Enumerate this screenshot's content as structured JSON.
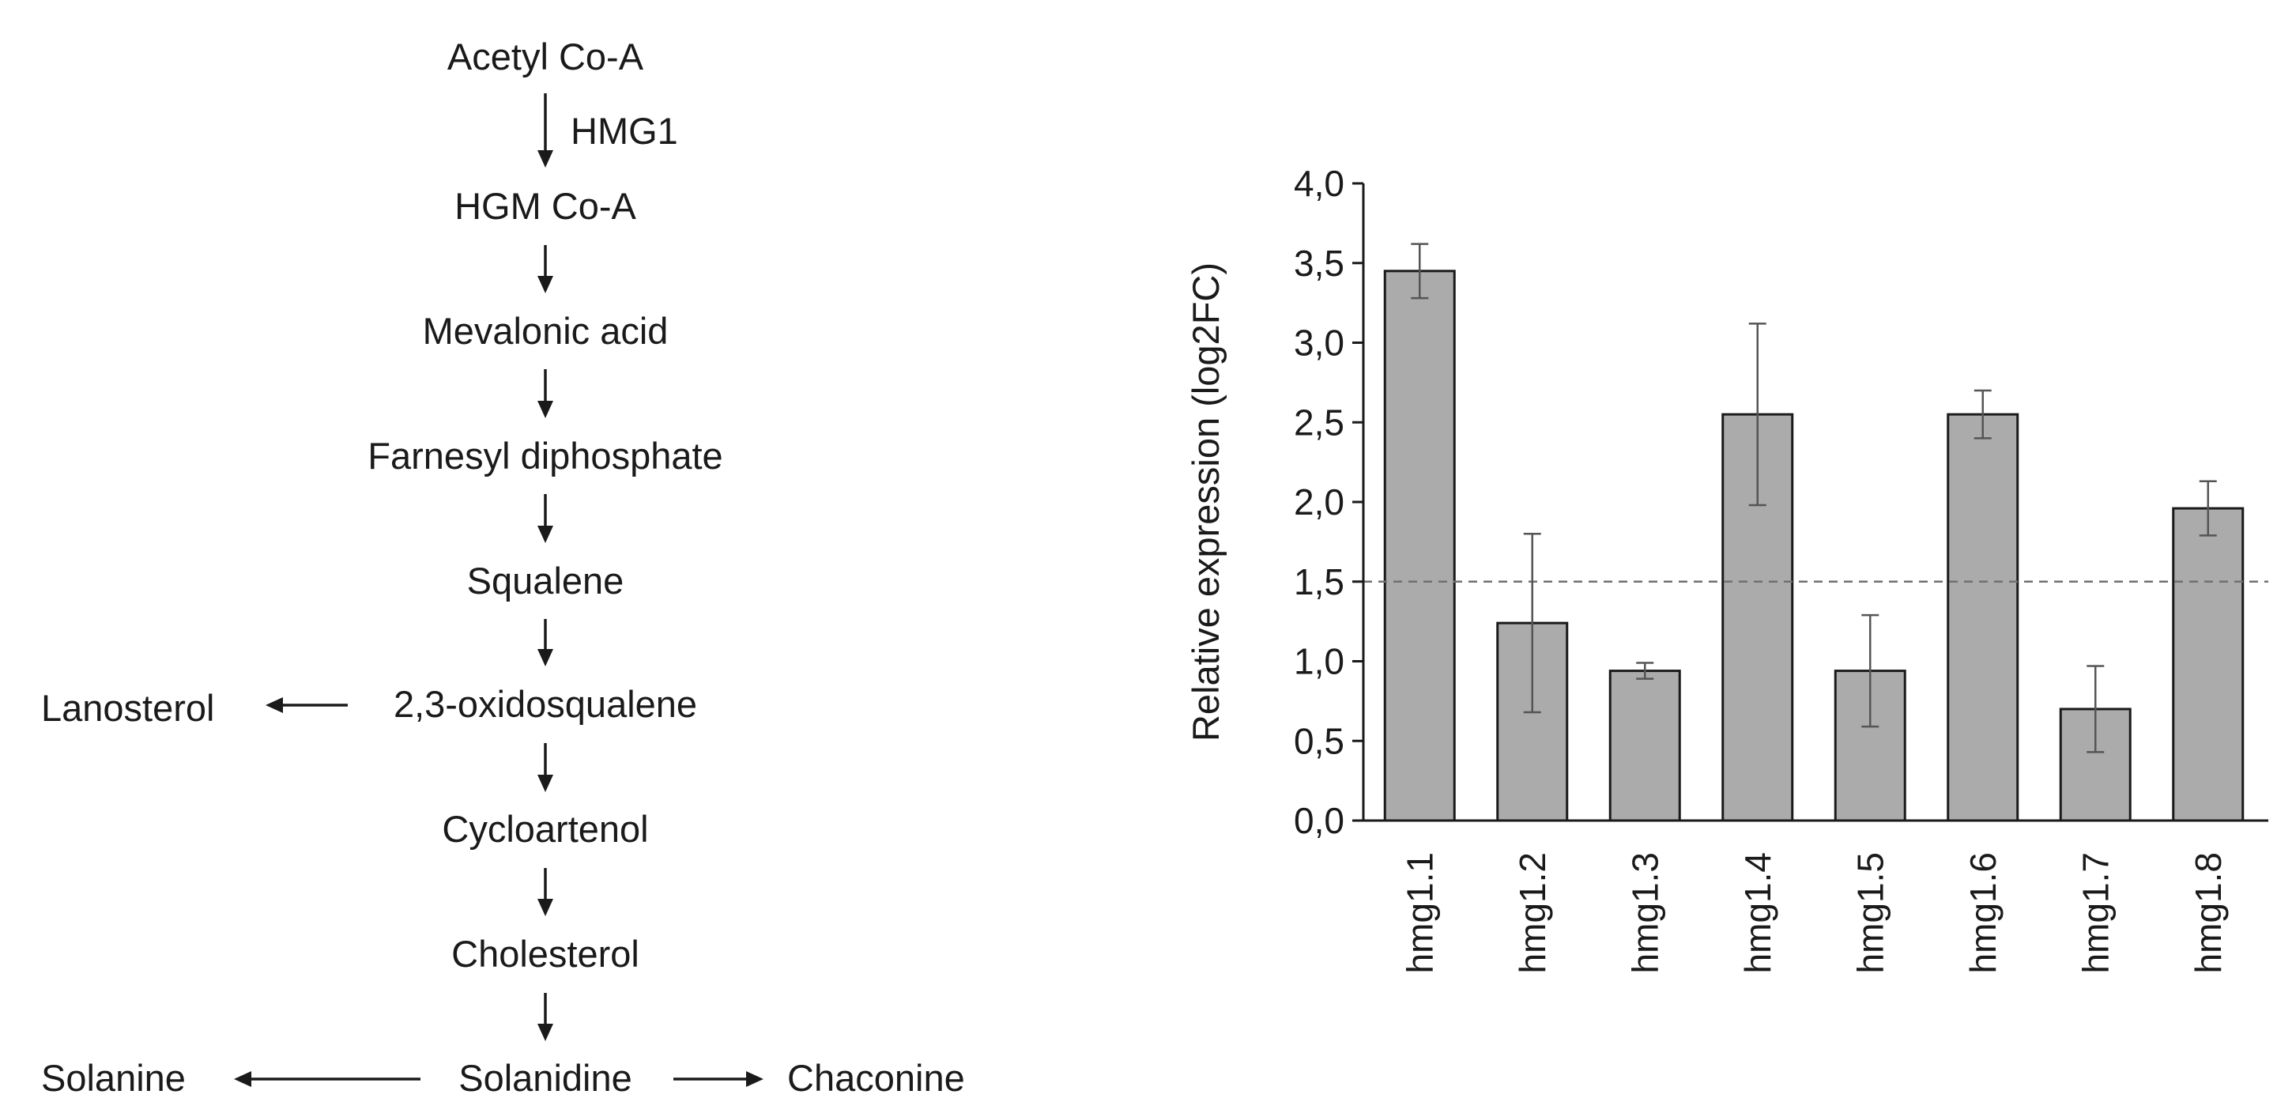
{
  "pathway": {
    "main": [
      "Acetyl Co-A",
      "HGM Co-A",
      "Mevalonic acid",
      "Farnesyl diphosphate",
      "Squalene",
      "2,3-oxidosqualene",
      "Cycloartenol",
      "Cholesterol",
      "Solanidine"
    ],
    "enzyme": "HMG1",
    "branch_oxidosqualene": "Lanosterol",
    "branch_solanidine_left": "Solanine",
    "branch_solanidine_right": "Chaconine"
  },
  "chart_data": {
    "type": "bar",
    "categories": [
      "hmg1.1",
      "hmg1.2",
      "hmg1.3",
      "hmg1.4",
      "hmg1.5",
      "hmg1.6",
      "hmg1.7",
      "hmg1.8"
    ],
    "values": [
      3.45,
      1.24,
      0.94,
      2.55,
      0.94,
      2.55,
      0.7,
      1.96
    ],
    "errors": [
      0.17,
      0.56,
      0.05,
      0.57,
      0.35,
      0.15,
      0.27,
      0.17
    ],
    "ylabel": "Relative expression (log2FC)",
    "xlabel": "",
    "ylim": [
      0,
      4.0
    ],
    "yticks": [
      "0,0",
      "0,5",
      "1,0",
      "1,5",
      "2,0",
      "2,5",
      "3,0",
      "3,5",
      "4,0"
    ],
    "threshold": 1.5,
    "grid": false,
    "colors": {
      "bar": "#ababab",
      "bar_edge": "#1a1a1a",
      "error": "#555555",
      "threshold_line": "#707070"
    }
  }
}
